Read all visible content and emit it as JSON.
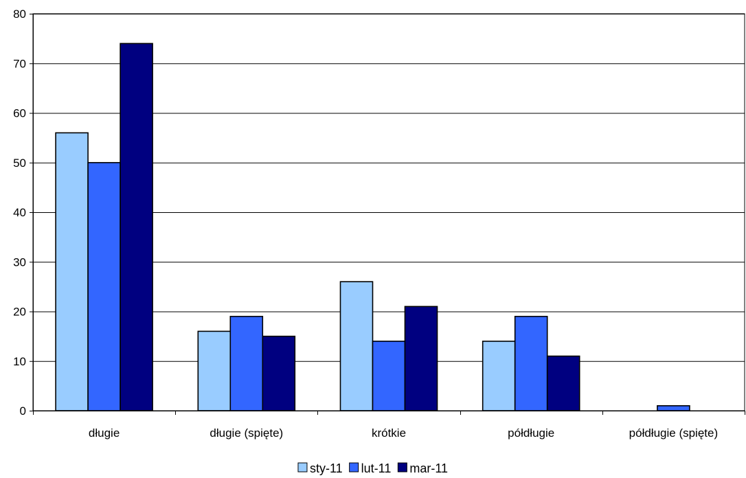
{
  "chart_data": {
    "type": "bar",
    "title": "",
    "xlabel": "",
    "ylabel": "",
    "ylim": [
      0,
      80
    ],
    "yticks": [
      0,
      10,
      20,
      30,
      40,
      50,
      60,
      70,
      80
    ],
    "grid": true,
    "legend_position": "bottom",
    "categories": [
      "długie",
      "długie (spięte)",
      "krótkie",
      "półdługie",
      "półdługie (spięte)"
    ],
    "series": [
      {
        "name": "sty-11",
        "color": "#99ccff",
        "values": [
          56,
          16,
          26,
          14,
          0
        ]
      },
      {
        "name": "lut-11",
        "color": "#3366ff",
        "values": [
          50,
          19,
          14,
          19,
          1
        ]
      },
      {
        "name": "mar-11",
        "color": "#000080",
        "values": [
          74,
          15,
          21,
          11,
          0
        ]
      }
    ]
  }
}
